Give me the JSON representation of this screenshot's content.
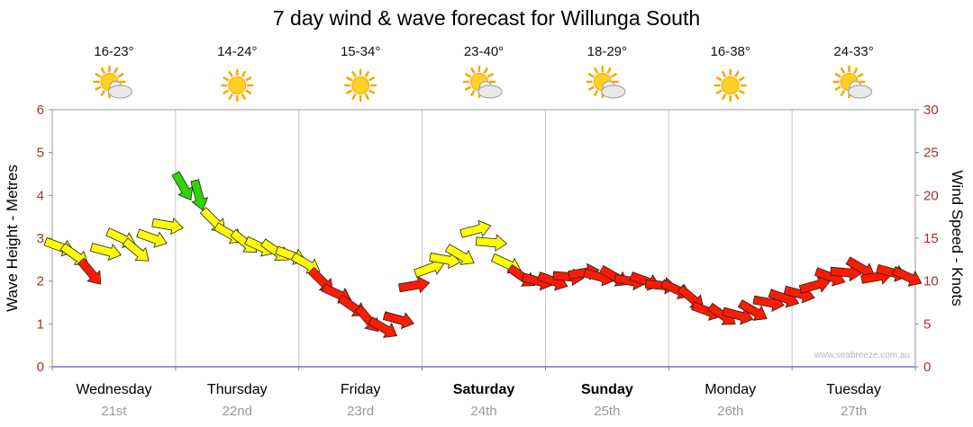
{
  "title": "7 day wind & wave forecast for Willunga South",
  "watermark": "www.seabreeze.com.au",
  "days": [
    {
      "name": "Wednesday",
      "date": "21st",
      "temp": "16-23°",
      "icon": "sun-cloud",
      "bold": false
    },
    {
      "name": "Thursday",
      "date": "22nd",
      "temp": "14-24°",
      "icon": "sun",
      "bold": false
    },
    {
      "name": "Friday",
      "date": "23rd",
      "temp": "15-34°",
      "icon": "sun",
      "bold": false
    },
    {
      "name": "Saturday",
      "date": "24th",
      "temp": "23-40°",
      "icon": "sun-cloud",
      "bold": true
    },
    {
      "name": "Sunday",
      "date": "25th",
      "temp": "18-29°",
      "icon": "sun-cloud",
      "bold": true
    },
    {
      "name": "Monday",
      "date": "26th",
      "temp": "16-38°",
      "icon": "sun",
      "bold": false
    },
    {
      "name": "Tuesday",
      "date": "27th",
      "temp": "24-33°",
      "icon": "sun-cloud",
      "bold": false
    }
  ],
  "axes": {
    "left_label": "Wave Height - Metres",
    "right_label": "Wind Speed - Knots",
    "left_ticks": [
      0,
      1,
      2,
      3,
      4,
      5,
      6
    ],
    "right_ticks": [
      0,
      5,
      10,
      15,
      20,
      25,
      30
    ]
  },
  "chart_data": {
    "type": "line",
    "title": "7 day wind & wave forecast for Willunga South",
    "categories": [
      "Wednesday 21st",
      "Thursday 22nd",
      "Friday 23rd",
      "Saturday 24th",
      "Sunday 25th",
      "Monday 26th",
      "Tuesday 27th"
    ],
    "points_per_day": 8,
    "ylabel_left": "Wave Height - Metres",
    "ylabel_right": "Wind Speed - Knots",
    "ylim_left_metres": [
      0,
      6
    ],
    "ylim_right_knots": [
      0,
      30
    ],
    "series": [
      {
        "name": "Wind speed (knots)",
        "knots": [
          14,
          13,
          11,
          13.5,
          15,
          13.5,
          15,
          16.5,
          21,
          20,
          17,
          15.5,
          14.5,
          14,
          13.5,
          13,
          12,
          10,
          8.5,
          7,
          5.5,
          4.5,
          5.5,
          9.5,
          11.5,
          12.5,
          13,
          16,
          14.5,
          12,
          10.5,
          10,
          10,
          10.5,
          11,
          10.5,
          10.5,
          10,
          10,
          9.5,
          9,
          8,
          6.5,
          6,
          6,
          6.5,
          7.5,
          8,
          8.5,
          9.5,
          10.5,
          11,
          11.5,
          10.5,
          11,
          10.5
        ],
        "colors": [
          "yellow",
          "yellow",
          "red",
          "yellow",
          "yellow",
          "yellow",
          "yellow",
          "yellow",
          "green",
          "green",
          "yellow",
          "yellow",
          "yellow",
          "yellow",
          "yellow",
          "yellow",
          "yellow",
          "red",
          "red",
          "red",
          "red",
          "red",
          "red",
          "red",
          "yellow",
          "yellow",
          "yellow",
          "yellow",
          "yellow",
          "yellow",
          "red",
          "red",
          "red",
          "red",
          "red",
          "red",
          "red",
          "red",
          "red",
          "red",
          "red",
          "red",
          "red",
          "red",
          "red",
          "red",
          "red",
          "red",
          "red",
          "red",
          "red",
          "red",
          "red",
          "red",
          "red",
          "red"
        ],
        "directions_deg": [
          20,
          35,
          50,
          15,
          25,
          40,
          20,
          10,
          60,
          75,
          45,
          30,
          40,
          25,
          35,
          20,
          30,
          45,
          25,
          35,
          50,
          30,
          15,
          -10,
          -20,
          10,
          30,
          -15,
          5,
          25,
          35,
          15,
          20,
          5,
          -10,
          15,
          30,
          10,
          20,
          5,
          25,
          40,
          20,
          35,
          15,
          30,
          10,
          20,
          15,
          -15,
          20,
          5,
          30,
          -10,
          15,
          25
        ]
      }
    ],
    "color_map": {
      "yellow": "#ffff00",
      "green": "#2fd500",
      "red": "#ff1a00"
    }
  }
}
